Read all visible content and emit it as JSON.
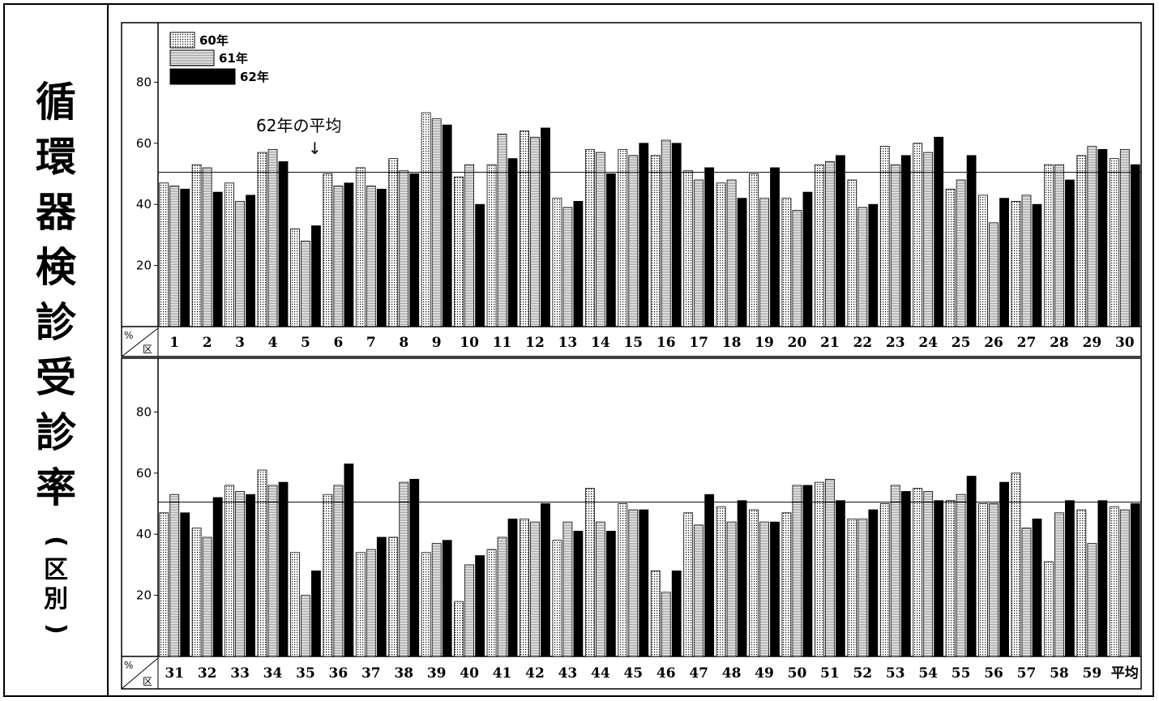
{
  "title": {
    "chars": [
      "循",
      "環",
      "器",
      "検",
      "診",
      "受",
      "診",
      "率"
    ],
    "sub_open": "(",
    "sub_chars": [
      "区",
      "別"
    ],
    "sub_close": ")"
  },
  "colors": {
    "y60_fill": "#ffffff",
    "y60_dot": "#000000",
    "y61_fill": "#ffffff",
    "y62_fill": "#000000"
  },
  "chart_data": [
    {
      "type": "bar",
      "title": "",
      "xlabel": "",
      "ylabel": "",
      "corner_top": "%",
      "corner_bottom": "区",
      "ylim": [
        0,
        100
      ],
      "yticks": [
        20,
        40,
        60,
        80
      ],
      "grid": false,
      "legend_position": "top-left",
      "average_line": 50.5,
      "average_label": "62年の平均",
      "average_arrow": "↓",
      "categories": [
        "1",
        "2",
        "3",
        "4",
        "5",
        "6",
        "7",
        "8",
        "9",
        "10",
        "11",
        "12",
        "13",
        "14",
        "15",
        "16",
        "17",
        "18",
        "19",
        "20",
        "21",
        "22",
        "23",
        "24",
        "25",
        "26",
        "27",
        "28",
        "29",
        "30"
      ],
      "series": [
        {
          "name": "60年",
          "pattern": "dots",
          "values": [
            47,
            53,
            47,
            57,
            32,
            50,
            52,
            55,
            70,
            49,
            53,
            64,
            42,
            58,
            58,
            56,
            51,
            47,
            50,
            42,
            53,
            48,
            59,
            60,
            45,
            43,
            41,
            53,
            56,
            55
          ]
        },
        {
          "name": "61年",
          "pattern": "lines",
          "values": [
            46,
            52,
            41,
            58,
            28,
            46,
            46,
            51,
            68,
            53,
            63,
            62,
            39,
            57,
            56,
            61,
            48,
            48,
            42,
            38,
            54,
            39,
            53,
            57,
            48,
            34,
            43,
            53,
            59,
            58
          ]
        },
        {
          "name": "62年",
          "pattern": "solid",
          "values": [
            45,
            44,
            43,
            54,
            33,
            47,
            45,
            50,
            66,
            40,
            55,
            65,
            41,
            50,
            60,
            60,
            52,
            42,
            52,
            44,
            56,
            40,
            56,
            62,
            56,
            42,
            40,
            48,
            58,
            53
          ]
        }
      ]
    },
    {
      "type": "bar",
      "title": "",
      "xlabel": "",
      "ylabel": "",
      "corner_top": "%",
      "corner_bottom": "区",
      "ylim": [
        0,
        100
      ],
      "yticks": [
        20,
        40,
        60,
        80
      ],
      "grid": false,
      "average_line": 50.5,
      "categories": [
        "31",
        "32",
        "33",
        "34",
        "35",
        "36",
        "37",
        "38",
        "39",
        "40",
        "41",
        "42",
        "43",
        "44",
        "45",
        "46",
        "47",
        "48",
        "49",
        "50",
        "51",
        "52",
        "53",
        "54",
        "55",
        "56",
        "57",
        "58",
        "59",
        "平均"
      ],
      "series": [
        {
          "name": "60年",
          "pattern": "dots",
          "values": [
            47,
            42,
            56,
            61,
            34,
            53,
            34,
            39,
            34,
            18,
            35,
            45,
            38,
            55,
            50,
            28,
            47,
            49,
            48,
            47,
            57,
            45,
            50,
            55,
            51,
            50,
            60,
            31,
            48,
            49
          ]
        },
        {
          "name": "61年",
          "pattern": "lines",
          "values": [
            53,
            39,
            54,
            56,
            20,
            56,
            35,
            57,
            37,
            30,
            39,
            44,
            44,
            44,
            48,
            21,
            43,
            44,
            44,
            56,
            58,
            45,
            56,
            54,
            53,
            50,
            42,
            47,
            37,
            48
          ]
        },
        {
          "name": "62年",
          "pattern": "solid",
          "values": [
            47,
            52,
            53,
            57,
            28,
            63,
            39,
            58,
            38,
            33,
            45,
            50,
            41,
            41,
            48,
            28,
            53,
            51,
            44,
            56,
            51,
            48,
            54,
            51,
            59,
            57,
            45,
            51,
            51,
            50
          ]
        }
      ]
    }
  ]
}
